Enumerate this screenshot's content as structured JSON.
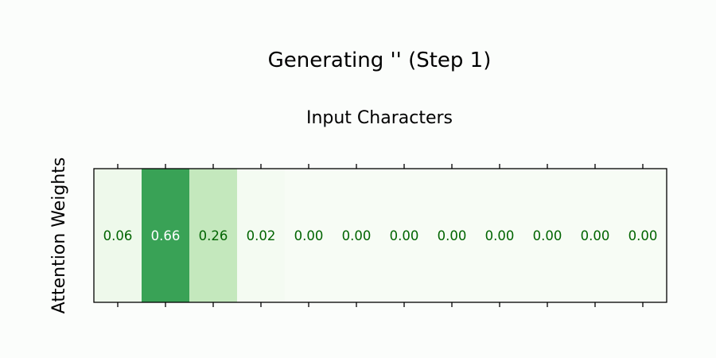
{
  "chart_data": {
    "type": "heatmap",
    "title": "Generating '' (Step 1)",
    "xlabel": "Input Characters",
    "ylabel": "Attention Weights",
    "x_tick_labels": [
      "",
      "",
      "",
      "",
      "",
      "",
      "",
      "",
      "",
      "",
      "",
      ""
    ],
    "values": [
      0.06,
      0.66,
      0.26,
      0.02,
      0.0,
      0.0,
      0.0,
      0.0,
      0.0,
      0.0,
      0.0,
      0.0
    ],
    "value_labels": [
      "0.06",
      "0.66",
      "0.26",
      "0.02",
      "0.00",
      "0.00",
      "0.00",
      "0.00",
      "0.00",
      "0.00",
      "0.00",
      "0.00"
    ],
    "colormap": "Greens",
    "vmin": 0,
    "vmax": 1,
    "colors": {
      "low": "#f7fcf5",
      "high": "#00441b",
      "label_dark": "#006400",
      "label_light": "#ffffff",
      "background": "#fbfdfb"
    },
    "grid": false,
    "legend": "none"
  }
}
